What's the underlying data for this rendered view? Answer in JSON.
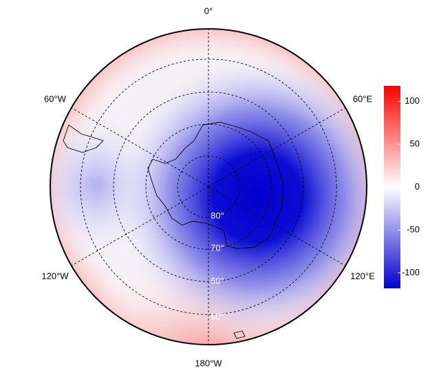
{
  "map": {
    "meridian_labels": [
      "0°",
      "60°E",
      "120°E",
      "180°W",
      "120°W",
      "60°W"
    ],
    "parallel_labels": [
      "80°",
      "70°",
      "60°",
      "50°"
    ],
    "colorbar": {
      "lim": [
        -118,
        118
      ],
      "ticks": [
        100,
        50,
        0,
        -50,
        -100
      ],
      "colors": [
        "#0000cc",
        "#ffffff",
        "#ff0000"
      ]
    }
  }
}
